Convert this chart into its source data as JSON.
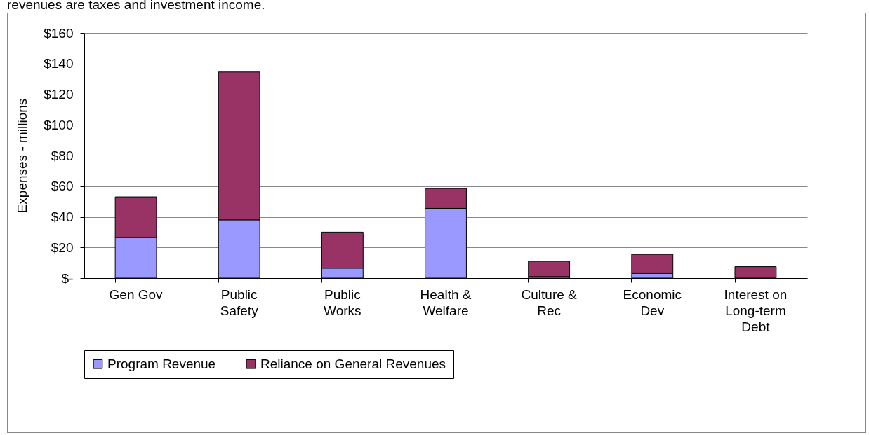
{
  "chart_data": {
    "type": "bar",
    "stacked": true,
    "annotations": [
      "revenues are taxes and investment income."
    ],
    "ylabel": "Expenses - millions",
    "categories": [
      "Gen Gov",
      "Public Safety",
      "Public Works",
      "Health & Welfare",
      "Culture & Rec",
      "Economic Dev",
      "Interest on Long-term Debt"
    ],
    "series": [
      {
        "name": "Program Revenue",
        "color": "#9999ff",
        "values": [
          26.5,
          38,
          6.5,
          45.5,
          1,
          3,
          0
        ]
      },
      {
        "name": "Reliance on General Revenues",
        "color": "#993366",
        "values": [
          26.5,
          96.5,
          23.5,
          13,
          10,
          12.5,
          7.5
        ]
      }
    ],
    "ylim": [
      0,
      160
    ],
    "yticks": [
      {
        "value": 0,
        "label": "$-"
      },
      {
        "value": 20,
        "label": "$20"
      },
      {
        "value": 40,
        "label": "$40"
      },
      {
        "value": 60,
        "label": "$60"
      },
      {
        "value": 80,
        "label": "$80"
      },
      {
        "value": 100,
        "label": "$100"
      },
      {
        "value": 120,
        "label": "$120"
      },
      {
        "value": 140,
        "label": "$140"
      },
      {
        "value": 160,
        "label": "$160"
      }
    ],
    "grid": "y",
    "legend": "bottom"
  }
}
